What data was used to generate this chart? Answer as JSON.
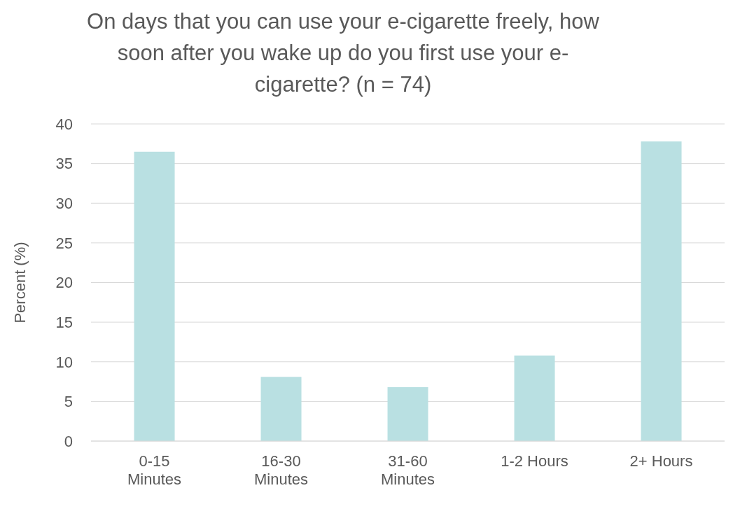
{
  "chart_data": {
    "type": "bar",
    "title": "On days that you can use your e-cigarette freely, how soon after you wake up do you first use your e-cigarette? (n = 74)",
    "ylabel": "Percent (%)",
    "categories": [
      "0-15 Minutes",
      "16-30 Minutes",
      "31-60 Minutes",
      "1-2 Hours",
      "2+ Hours"
    ],
    "values": [
      36.5,
      8.1,
      6.8,
      10.8,
      37.8
    ],
    "color": "#b9e0e2",
    "ylim": [
      0,
      40
    ],
    "yticks": [
      0,
      5,
      10,
      15,
      20,
      25,
      30,
      35,
      40
    ],
    "grid": "y"
  }
}
